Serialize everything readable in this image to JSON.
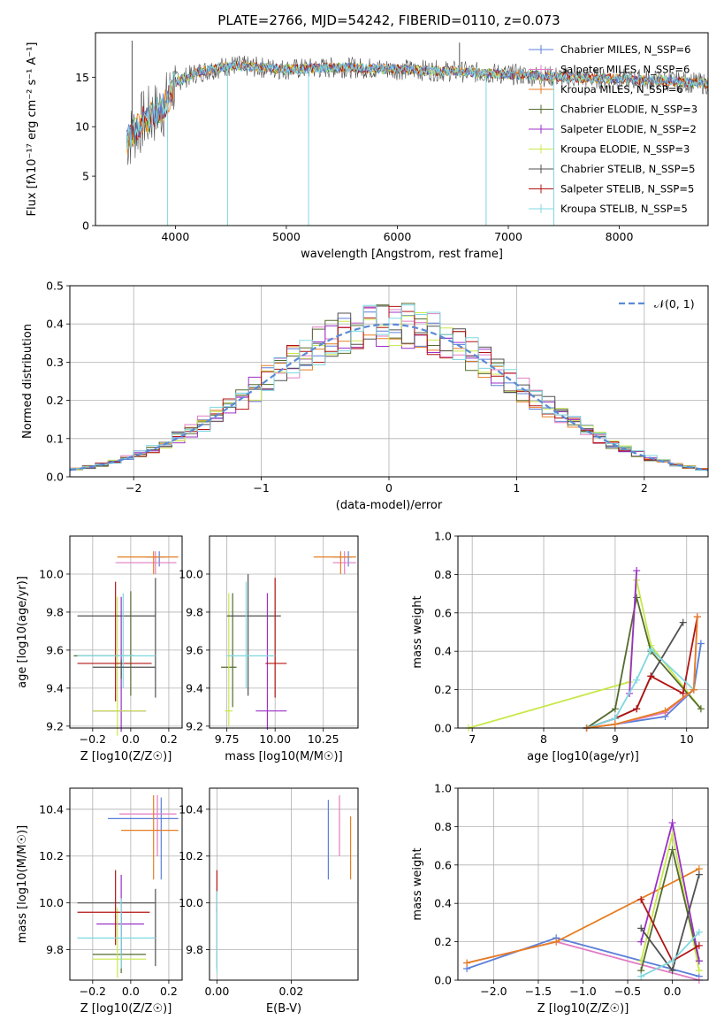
{
  "colors": {
    "chabrier_miles": "#5b7fd9",
    "salpeter_miles": "#e27dc3",
    "kroupa_miles": "#e67e22",
    "chabrier_elodie": "#556b2f",
    "salpeter_elodie": "#9b30c8",
    "kroupa_elodie": "#c8e84a",
    "chabrier_stelib": "#505050",
    "salpeter_stelib": "#b21414",
    "kroupa_stelib": "#7fd8e0",
    "gauss": "#5b8ad6",
    "grid": "#b0b0b0"
  },
  "chart_data": [
    {
      "id": "spectrum",
      "type": "line",
      "title": "PLATE=2766, MJD=54242, FIBERID=0110, z=0.073",
      "xlabel": "wavelength [Angstrom, rest frame]",
      "ylabel": "Flux [fλ10⁻¹⁷ erg cm⁻² s⁻¹ A⁻¹]",
      "xlim": [
        3280,
        8800
      ],
      "ylim": [
        0,
        19.5
      ],
      "xticks": [
        4000,
        5000,
        6000,
        7000,
        8000
      ],
      "yticks": [
        0,
        5,
        10,
        15
      ],
      "legend_position": "right",
      "legend": [
        "Chabrier MILES, N_SSP=6",
        "Salpeter MILES, N_SSP=6",
        "Kroupa MILES, N_SSP=6",
        "Chabrier ELODIE, N_SSP=3",
        "Salpeter ELODIE, N_SSP=2",
        "Kroupa ELODIE, N_SSP=3",
        "Chabrier STELIB, N_SSP=5",
        "Salpeter STELIB, N_SSP=5",
        "Kroupa STELIB, N_SSP=5"
      ],
      "data_range_x": [
        3560,
        8820
      ],
      "continuum": [
        [
          3560,
          8.5
        ],
        [
          3700,
          10.5
        ],
        [
          3900,
          12
        ],
        [
          4000,
          14.5
        ],
        [
          4200,
          15.5
        ],
        [
          4500,
          16.2
        ],
        [
          5000,
          15.8
        ],
        [
          5500,
          16
        ],
        [
          6000,
          15.8
        ],
        [
          6500,
          15.6
        ],
        [
          7000,
          15.3
        ],
        [
          7500,
          15
        ],
        [
          8000,
          14.8
        ],
        [
          8500,
          14.6
        ],
        [
          8820,
          14.3
        ]
      ],
      "spikes": [
        [
          3610,
          18.7
        ],
        [
          3930,
          0
        ],
        [
          4470,
          0
        ],
        [
          5200,
          0
        ],
        [
          6800,
          0
        ],
        [
          7410,
          0
        ],
        [
          6560,
          18.5
        ]
      ]
    },
    {
      "id": "residuals",
      "type": "step",
      "xlabel": "(data-model)/error",
      "ylabel": "Normed distribution",
      "xlim": [
        -2.5,
        2.5
      ],
      "ylim": [
        0,
        0.5
      ],
      "xticks": [
        -2,
        -1,
        0,
        1,
        2
      ],
      "yticks": [
        0.0,
        0.1,
        0.2,
        0.3,
        0.4,
        0.5
      ],
      "gauss_label": "𝒩(0, 1)",
      "legend_position": "top-right"
    },
    {
      "id": "age_vs_Z",
      "type": "scatter",
      "xlabel": "Z [log10(Z/Z☉)]",
      "ylabel": "age  [log10(age/yr)]",
      "xlim": [
        -0.32,
        0.27
      ],
      "ylim": [
        9.19,
        10.2
      ],
      "xticks": [
        -0.2,
        0.0,
        0.2
      ],
      "yticks": [
        9.2,
        9.4,
        9.6,
        9.8,
        10.0
      ],
      "points": [
        {
          "s": "chabrier_miles",
          "x": 0.15,
          "y": 10.09,
          "xe": [
            0.08,
            0.18
          ],
          "ye": [
            10.04,
            10.12
          ]
        },
        {
          "s": "salpeter_miles",
          "x": 0.13,
          "y": 10.06,
          "xe": [
            -0.08,
            0.24
          ],
          "ye": [
            10.0,
            10.12
          ]
        },
        {
          "s": "kroupa_miles",
          "x": 0.12,
          "y": 10.09,
          "xe": [
            -0.07,
            0.25
          ],
          "ye": [
            10.0,
            10.12
          ]
        },
        {
          "s": "chabrier_elodie",
          "x": 0.0,
          "y": 9.57,
          "xe": [
            -0.3,
            0.02
          ],
          "ye": [
            9.36,
            9.91
          ]
        },
        {
          "s": "salpeter_elodie",
          "x": -0.05,
          "y": 9.28,
          "xe": [
            -0.2,
            0.08
          ],
          "ye": [
            9.17,
            9.88
          ]
        },
        {
          "s": "kroupa_elodie",
          "x": -0.07,
          "y": 9.28,
          "xe": [
            -0.2,
            0.08
          ],
          "ye": [
            9.15,
            9.88
          ]
        },
        {
          "s": "chabrier_stelib",
          "x": 0.13,
          "y": 9.78,
          "xe": [
            -0.28,
            0.13
          ],
          "ye": [
            9.35,
            9.98
          ]
        },
        {
          "s": "salpeter_stelib",
          "x": -0.08,
          "y": 9.53,
          "xe": [
            -0.28,
            0.11
          ],
          "ye": [
            9.33,
            9.96
          ]
        },
        {
          "s": "kroupa_stelib",
          "x": -0.04,
          "y": 9.57,
          "xe": [
            -0.28,
            0.13
          ],
          "ye": [
            9.4,
            9.9
          ]
        },
        {
          "s": "chabrier_stelib",
          "x": -0.05,
          "y": 9.51,
          "xe": [
            -0.2,
            0.13
          ],
          "ye": [
            9.45,
            9.55
          ]
        }
      ]
    },
    {
      "id": "age_vs_mass",
      "type": "scatter",
      "xlabel": "mass [log10(M/M☉)]",
      "xlim": [
        9.66,
        10.43
      ],
      "ylim": [
        9.19,
        10.2
      ],
      "xticks": [
        9.75,
        10.0,
        10.25
      ],
      "xtick_labels": [
        "9.75",
        "10.00",
        "10.25"
      ],
      "yticks": [
        9.2,
        9.4,
        9.6,
        9.8,
        10.0
      ],
      "points": [
        {
          "s": "chabrier_miles",
          "x": 10.38,
          "y": 10.09,
          "xe": [
            10.3,
            10.4
          ],
          "ye": [
            10.04,
            10.12
          ]
        },
        {
          "s": "salpeter_miles",
          "x": 10.36,
          "y": 10.06,
          "xe": [
            10.3,
            10.42
          ],
          "ye": [
            10.0,
            10.12
          ]
        },
        {
          "s": "kroupa_miles",
          "x": 10.34,
          "y": 10.09,
          "xe": [
            10.2,
            10.42
          ],
          "ye": [
            10.0,
            10.12
          ]
        },
        {
          "s": "chabrier_elodie",
          "x": 9.78,
          "y": 9.51,
          "xe": [
            9.72,
            9.8
          ],
          "ye": [
            9.3,
            9.9
          ]
        },
        {
          "s": "salpeter_elodie",
          "x": 9.96,
          "y": 9.28,
          "xe": [
            9.9,
            10.06
          ],
          "ye": [
            9.18,
            9.9
          ]
        },
        {
          "s": "kroupa_elodie",
          "x": 9.76,
          "y": 9.28,
          "xe": [
            9.74,
            9.78
          ],
          "ye": [
            9.2,
            9.9
          ]
        },
        {
          "s": "chabrier_stelib",
          "x": 9.86,
          "y": 9.78,
          "xe": [
            9.75,
            10.03
          ],
          "ye": [
            9.36,
            10.0
          ]
        },
        {
          "s": "salpeter_stelib",
          "x": 10.0,
          "y": 9.53,
          "xe": [
            9.95,
            10.06
          ],
          "ye": [
            9.35,
            9.98
          ]
        },
        {
          "s": "kroupa_stelib",
          "x": 9.85,
          "y": 9.57,
          "xe": [
            9.75,
            10.0
          ],
          "ye": [
            9.4,
            9.96
          ]
        }
      ]
    },
    {
      "id": "weight_vs_age",
      "type": "line",
      "xlabel": "age  [log10(age/yr)]",
      "ylabel": "mass weight",
      "xlim": [
        6.8,
        10.3
      ],
      "ylim": [
        0,
        1.0
      ],
      "xticks": [
        7,
        8,
        9,
        10
      ],
      "yticks": [
        0.0,
        0.2,
        0.4,
        0.6,
        0.8,
        1.0
      ],
      "series": [
        {
          "s": "kroupa_elodie",
          "x": [
            6.95,
            9.2,
            9.3,
            9.5,
            10.2
          ],
          "y": [
            0.0,
            0.24,
            0.77,
            0.43,
            0.1
          ]
        },
        {
          "s": "chabrier_elodie",
          "x": [
            8.6,
            9.0,
            9.3,
            9.5,
            10.2
          ],
          "y": [
            0.0,
            0.1,
            0.68,
            0.4,
            0.1
          ]
        },
        {
          "s": "salpeter_elodie",
          "x": [
            9.2,
            9.3
          ],
          "y": [
            0.18,
            0.82
          ]
        },
        {
          "s": "chabrier_stelib",
          "x": [
            8.6,
            9.0,
            9.3,
            9.5,
            9.95
          ],
          "y": [
            0.0,
            0.05,
            0.1,
            0.27,
            0.55
          ]
        },
        {
          "s": "salpeter_stelib",
          "x": [
            8.6,
            9.0,
            9.3,
            9.5,
            9.95,
            10.15
          ],
          "y": [
            0.0,
            0.05,
            0.1,
            0.27,
            0.18,
            0.58
          ]
        },
        {
          "s": "kroupa_stelib",
          "x": [
            8.6,
            9.0,
            9.3,
            9.5,
            10.1,
            10.2
          ],
          "y": [
            0.0,
            0.05,
            0.25,
            0.41,
            0.2,
            0.44
          ]
        },
        {
          "s": "chabrier_miles",
          "x": [
            8.6,
            9.0,
            9.7,
            10.1,
            10.2
          ],
          "y": [
            0.0,
            0.02,
            0.06,
            0.2,
            0.44
          ]
        },
        {
          "s": "salpeter_miles",
          "x": [
            8.6,
            9.0,
            9.7,
            10.1,
            10.15
          ],
          "y": [
            0.0,
            0.02,
            0.08,
            0.2,
            0.58
          ]
        },
        {
          "s": "kroupa_miles",
          "x": [
            8.6,
            9.0,
            9.7,
            10.1,
            10.15
          ],
          "y": [
            0.0,
            0.02,
            0.09,
            0.2,
            0.58
          ]
        }
      ]
    },
    {
      "id": "mass_vs_Z",
      "type": "scatter",
      "xlabel": "Z [log10(Z/Z☉)]",
      "ylabel": "mass [log10(M/M☉)]",
      "xlim": [
        -0.32,
        0.27
      ],
      "ylim": [
        9.67,
        10.49
      ],
      "xticks": [
        -0.2,
        0.0,
        0.2
      ],
      "yticks": [
        9.8,
        10.0,
        10.2,
        10.4
      ],
      "points": [
        {
          "s": "chabrier_miles",
          "x": 0.16,
          "y": 10.36,
          "xe": [
            -0.12,
            0.25
          ],
          "ye": [
            10.1,
            10.45
          ]
        },
        {
          "s": "salpeter_miles",
          "x": 0.14,
          "y": 10.38,
          "xe": [
            -0.06,
            0.24
          ],
          "ye": [
            10.2,
            10.46
          ]
        },
        {
          "s": "kroupa_miles",
          "x": 0.12,
          "y": 10.31,
          "xe": [
            -0.05,
            0.25
          ],
          "ye": [
            10.1,
            10.46
          ]
        },
        {
          "s": "chabrier_elodie",
          "x": -0.05,
          "y": 9.78,
          "xe": [
            -0.2,
            0.08
          ],
          "ye": [
            9.7,
            9.96
          ]
        },
        {
          "s": "salpeter_elodie",
          "x": -0.05,
          "y": 9.91,
          "xe": [
            -0.18,
            0.07
          ],
          "ye": [
            9.78,
            10.12
          ]
        },
        {
          "s": "kroupa_elodie",
          "x": -0.07,
          "y": 9.76,
          "xe": [
            -0.2,
            0.08
          ],
          "ye": [
            9.68,
            9.98
          ]
        },
        {
          "s": "chabrier_stelib",
          "x": 0.13,
          "y": 10.0,
          "xe": [
            -0.28,
            0.13
          ],
          "ye": [
            9.73,
            10.06
          ]
        },
        {
          "s": "salpeter_stelib",
          "x": -0.08,
          "y": 9.96,
          "xe": [
            -0.28,
            0.1
          ],
          "ye": [
            9.82,
            10.14
          ]
        },
        {
          "s": "kroupa_stelib",
          "x": -0.05,
          "y": 9.85,
          "xe": [
            -0.28,
            0.13
          ],
          "ye": [
            9.72,
            10.02
          ]
        }
      ]
    },
    {
      "id": "mass_vs_ebv",
      "type": "scatter",
      "xlabel": "E(B-V)",
      "xlim": [
        -0.002,
        0.038
      ],
      "ylim": [
        9.67,
        10.49
      ],
      "xticks": [
        0.0,
        0.02
      ],
      "xtick_labels": [
        "0.00",
        "0.02"
      ],
      "yticks": [
        9.8,
        10.0,
        10.2,
        10.4
      ],
      "points": [
        {
          "s": "chabrier_miles",
          "x": 0.03,
          "y": 10.27,
          "xe": [
            0.03,
            0.03
          ],
          "ye": [
            10.1,
            10.44
          ]
        },
        {
          "s": "salpeter_miles",
          "x": 0.033,
          "y": 10.33,
          "xe": [
            0.033,
            0.033
          ],
          "ye": [
            10.2,
            10.46
          ]
        },
        {
          "s": "kroupa_miles",
          "x": 0.036,
          "y": 10.24,
          "xe": [
            0.036,
            0.036
          ],
          "ye": [
            10.1,
            10.37
          ]
        },
        {
          "s": "salpeter_stelib",
          "x": 0.0,
          "y": 10.05,
          "xe": [
            0.0,
            0.0
          ],
          "ye": [
            9.96,
            10.14
          ]
        },
        {
          "s": "chabrier_elodie",
          "x": 0.0,
          "y": 9.8,
          "xe": [
            0.0,
            0.0
          ],
          "ye": [
            9.72,
            9.98
          ]
        },
        {
          "s": "kroupa_stelib",
          "x": 0.0,
          "y": 9.85,
          "xe": [
            0.0,
            0.0
          ],
          "ye": [
            9.7,
            10.05
          ]
        }
      ]
    },
    {
      "id": "weight_vs_Z",
      "type": "line",
      "xlabel": "Z [log10(Z/Z☉)]",
      "ylabel": "mass weight",
      "xlim": [
        -2.4,
        0.4
      ],
      "ylim": [
        0,
        1.0
      ],
      "xticks": [
        -2.0,
        -1.5,
        -1.0,
        -0.5,
        0.0
      ],
      "yticks": [
        0.0,
        0.2,
        0.4,
        0.6,
        0.8,
        1.0
      ],
      "series": [
        {
          "s": "chabrier_miles",
          "x": [
            -2.3,
            -1.3,
            0.3
          ],
          "y": [
            0.06,
            0.22,
            0.02
          ]
        },
        {
          "s": "salpeter_miles",
          "x": [
            -2.3,
            -1.3,
            0.3
          ],
          "y": [
            0.09,
            0.2,
            0.0
          ]
        },
        {
          "s": "kroupa_miles",
          "x": [
            -2.3,
            -1.3,
            0.3
          ],
          "y": [
            0.09,
            0.2,
            0.58
          ]
        },
        {
          "s": "kroupa_elodie",
          "x": [
            -0.35,
            0.0,
            0.3
          ],
          "y": [
            0.1,
            0.76,
            0.05
          ]
        },
        {
          "s": "chabrier_elodie",
          "x": [
            -0.35,
            0.0,
            0.3
          ],
          "y": [
            0.05,
            0.68,
            0.1
          ]
        },
        {
          "s": "salpeter_elodie",
          "x": [
            -0.35,
            0.0,
            0.3
          ],
          "y": [
            0.2,
            0.82,
            0.1
          ]
        },
        {
          "s": "chabrier_stelib",
          "x": [
            -0.35,
            0.0,
            0.3
          ],
          "y": [
            0.27,
            0.05,
            0.55
          ]
        },
        {
          "s": "salpeter_stelib",
          "x": [
            -0.35,
            0.0,
            0.3
          ],
          "y": [
            0.42,
            0.1,
            0.18
          ]
        },
        {
          "s": "kroupa_stelib",
          "x": [
            -0.35,
            0.0,
            0.3
          ],
          "y": [
            0.02,
            0.1,
            0.25
          ]
        }
      ]
    }
  ]
}
